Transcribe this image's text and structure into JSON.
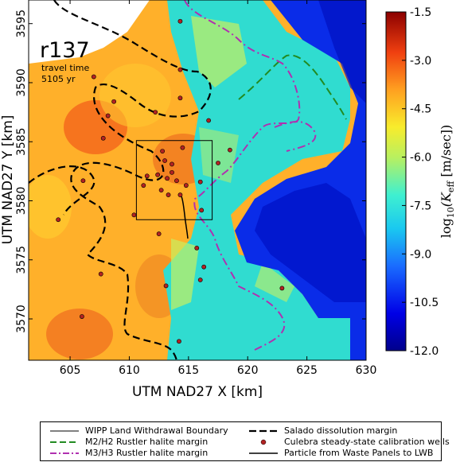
{
  "chart_data": {
    "type": "heatmap",
    "title": "r137",
    "annotation_lines": [
      "travel time",
      "5105 yr"
    ],
    "xlabel": "UTM NAD27 X [km]",
    "ylabel": "UTM NAD27 Y [km]",
    "xlim": [
      601.5,
      630
    ],
    "ylim": [
      3566.5,
      3597
    ],
    "xticks": [
      605,
      610,
      615,
      620,
      625,
      630
    ],
    "yticks": [
      3570,
      3575,
      3580,
      3585,
      3590,
      3595
    ],
    "colorbar": {
      "label_prefix": "log",
      "label_sub": "10",
      "label_body": "(K",
      "label_sub2": "eff",
      "label_suffix": " [m/sec])",
      "min": -12.0,
      "max": -1.5,
      "ticks": [
        "-1.5",
        "-3.0",
        "-4.5",
        "-6.0",
        "-7.5",
        "-9.0",
        "-10.5",
        "-12.0"
      ],
      "tick_values": [
        -1.5,
        -3.0,
        -4.5,
        -6.0,
        -7.5,
        -9.0,
        -10.5,
        -12.0
      ]
    },
    "wipp_boundary": {
      "x0": 610.6,
      "x1": 617.0,
      "y0": 3578.4,
      "y1": 3585.1
    },
    "calibration_wells": [
      [
        608.7,
        3588.4
      ],
      [
        607.0,
        3590.5
      ],
      [
        608.2,
        3587.2
      ],
      [
        612.2,
        3587.5
      ],
      [
        614.3,
        3588.7
      ],
      [
        612.8,
        3584.2
      ],
      [
        613.0,
        3583.4
      ],
      [
        614.5,
        3584.5
      ],
      [
        613.6,
        3583.1
      ],
      [
        611.5,
        3582.1
      ],
      [
        612.4,
        3582.2
      ],
      [
        613.2,
        3581.9
      ],
      [
        613.6,
        3582.4
      ],
      [
        614.0,
        3581.7
      ],
      [
        614.8,
        3581.3
      ],
      [
        612.7,
        3580.9
      ],
      [
        611.2,
        3581.3
      ],
      [
        613.3,
        3580.5
      ],
      [
        614.3,
        3580.5
      ],
      [
        616.0,
        3581.6
      ],
      [
        616.1,
        3579.2
      ],
      [
        615.7,
        3576.0
      ],
      [
        616.3,
        3574.4
      ],
      [
        616.0,
        3573.3
      ],
      [
        612.5,
        3577.2
      ],
      [
        617.5,
        3583.2
      ],
      [
        618.5,
        3584.3
      ],
      [
        613.1,
        3572.8
      ],
      [
        614.2,
        3568.1
      ],
      [
        606.0,
        3570.2
      ],
      [
        604.0,
        3578.4
      ],
      [
        607.6,
        3573.8
      ],
      [
        606.1,
        3581.7
      ],
      [
        607.8,
        3585.3
      ],
      [
        616.7,
        3586.8
      ],
      [
        614.3,
        3595.2
      ],
      [
        622.9,
        3572.6
      ],
      [
        614.3,
        3591.1
      ],
      [
        610.4,
        3578.8
      ]
    ]
  },
  "legend": {
    "items": [
      "WIPP Land Withdrawal Boundary",
      "Salado dissolution margin",
      "M2/H2 Rustler halite margin",
      "Culebra steady-state calibration wells",
      "M3/H3 Rustler halite margin",
      "Particle from Waste Panels to LWB"
    ]
  },
  "colors": {
    "salado": "#000000",
    "m2h2": "#228b22",
    "m3h3": "#b030b0",
    "well_fill": "#b22222",
    "wipp": "#000000",
    "particle": "#000000"
  }
}
